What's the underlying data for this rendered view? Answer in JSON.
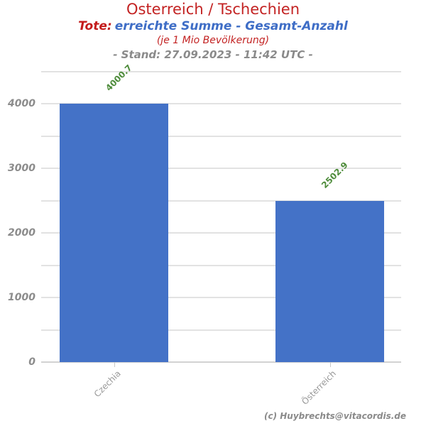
{
  "header": {
    "title": "Osterreich / Tschechien",
    "subtitle_prefix": "Tote:",
    "subtitle_main": "erreichte Summe - Gesamt-Anzahl",
    "subtitle_note": "(je 1 Mio Bevölkerung)",
    "stand_line": "- Stand: 27.09.2023 - 11:42 UTC -"
  },
  "footer": {
    "copyright": "(c) Huybrechts@vitacordis.de"
  },
  "colors": {
    "title_red": "#c32323",
    "subtitle_prefix_red": "#c31b1b",
    "subtitle_blue": "#3e6dc6",
    "note_red": "#c32323",
    "stand_gray": "#8a8a8a",
    "bar_blue": "#4472c7",
    "value_green": "#4e8c3b",
    "ytick_gray": "#8c8c8c",
    "xcat_gray": "#999999",
    "gridline_gray": "#e2e2e2",
    "baseline_gray": "#d2d2d2",
    "xtick_gray": "#c9c9c9",
    "copyright_gray": "#8a8a8a"
  },
  "chart_data": {
    "type": "bar",
    "title": "Osterreich / Tschechien — Tote: erreichte Summe - Gesamt-Anzahl (je 1 Mio Bevölkerung)",
    "categories": [
      "Czechia",
      "Österreich"
    ],
    "values": [
      4000.7,
      2502.9
    ],
    "value_labels": [
      "4000.7",
      "2502.9"
    ],
    "xlabel": "",
    "ylabel": "",
    "ylim": [
      0,
      4500
    ],
    "ytick_labels": [
      0,
      1000,
      2000,
      3000,
      4000
    ],
    "gridline_step": 500,
    "grid": true,
    "legend": false,
    "layout": {
      "bar_centers_frac": [
        0.2022,
        0.8018
      ],
      "bar_width_frac": 0.3018,
      "value_label_rotation_deg": -45,
      "xcat_label_rotation_deg": -45
    }
  }
}
